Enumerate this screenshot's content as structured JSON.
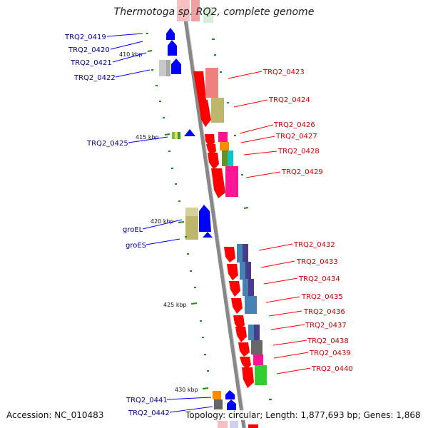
{
  "title": "Thermotoga sp. RQ2, complete genome",
  "footer": {
    "accession": "Accession: NC_010483",
    "topology": "Topology: circular; Length: 1,877,693 bp; Genes: 1,868"
  },
  "colors": {
    "backbone": "#888888",
    "forward_gene": "#0000ff",
    "reverse_gene": "#ff0000",
    "forward_label": "#00008b",
    "reverse_label": "#c80000",
    "tick": "#1a8c1a"
  },
  "kbp_ticks": [
    "410 kbp",
    "415 kbp",
    "420 kbp",
    "425 kbp",
    "430 kbp"
  ],
  "left_labels": [
    "TRQ2_0419",
    "TRQ2_0420",
    "TRQ2_0421",
    "TRQ2_0422",
    "TRQ2_0425",
    "groEL",
    "groES",
    "TRQ2_0441",
    "TRQ2_0442"
  ],
  "right_labels": [
    "TRQ2_0423",
    "TRQ2_0424",
    "TRQ2_0426",
    "TRQ2_0427",
    "TRQ2_0428",
    "TRQ2_0429",
    "TRQ2_0432",
    "TRQ2_0433",
    "TRQ2_0434",
    "TRQ2_0435",
    "TRQ2_0436",
    "TRQ2_0437",
    "TRQ2_0438",
    "TRQ2_0439",
    "TRQ2_0440"
  ]
}
